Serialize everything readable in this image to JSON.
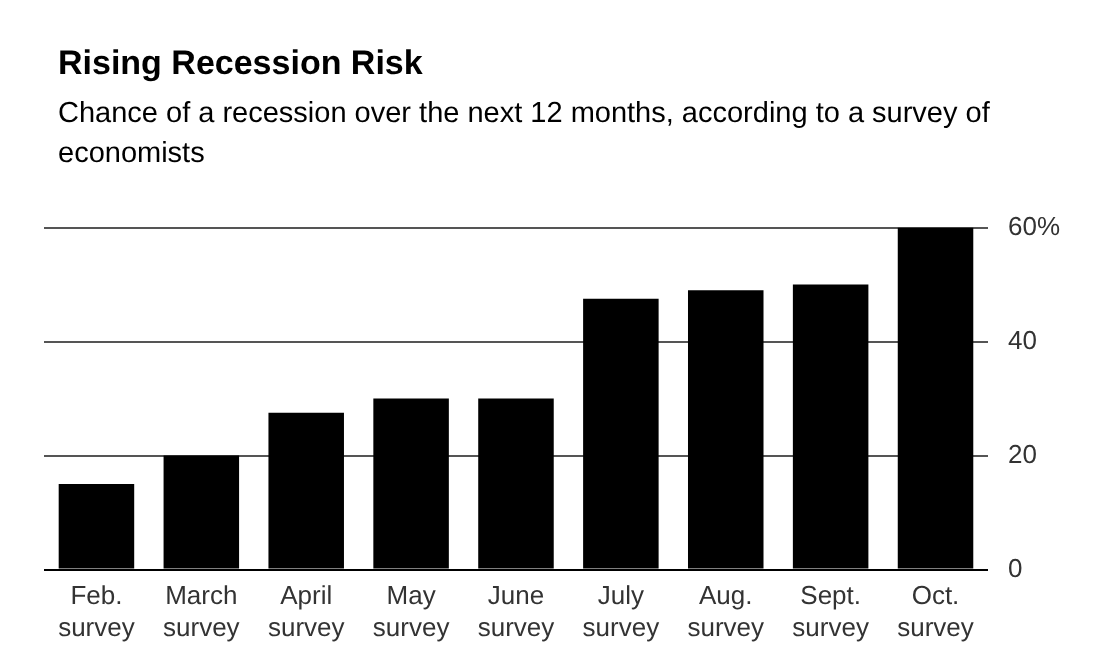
{
  "chart_data": {
    "type": "bar",
    "title": "Rising Recession Risk",
    "subtitle": "Chance of a recession over the next 12 months, according to a survey of economists",
    "categories": [
      "Feb. survey",
      "March survey",
      "April survey",
      "May survey",
      "June survey",
      "July survey",
      "Aug. survey",
      "Sept. survey",
      "Oct. survey"
    ],
    "values": [
      15,
      20,
      27.5,
      30,
      30,
      47.5,
      49,
      50,
      60
    ],
    "color": "#000000",
    "ylim": [
      0,
      60
    ],
    "yticks": [
      0,
      20,
      40,
      {
        "value": 60,
        "label": "60%"
      }
    ],
    "grid": "y",
    "legend": false
  }
}
